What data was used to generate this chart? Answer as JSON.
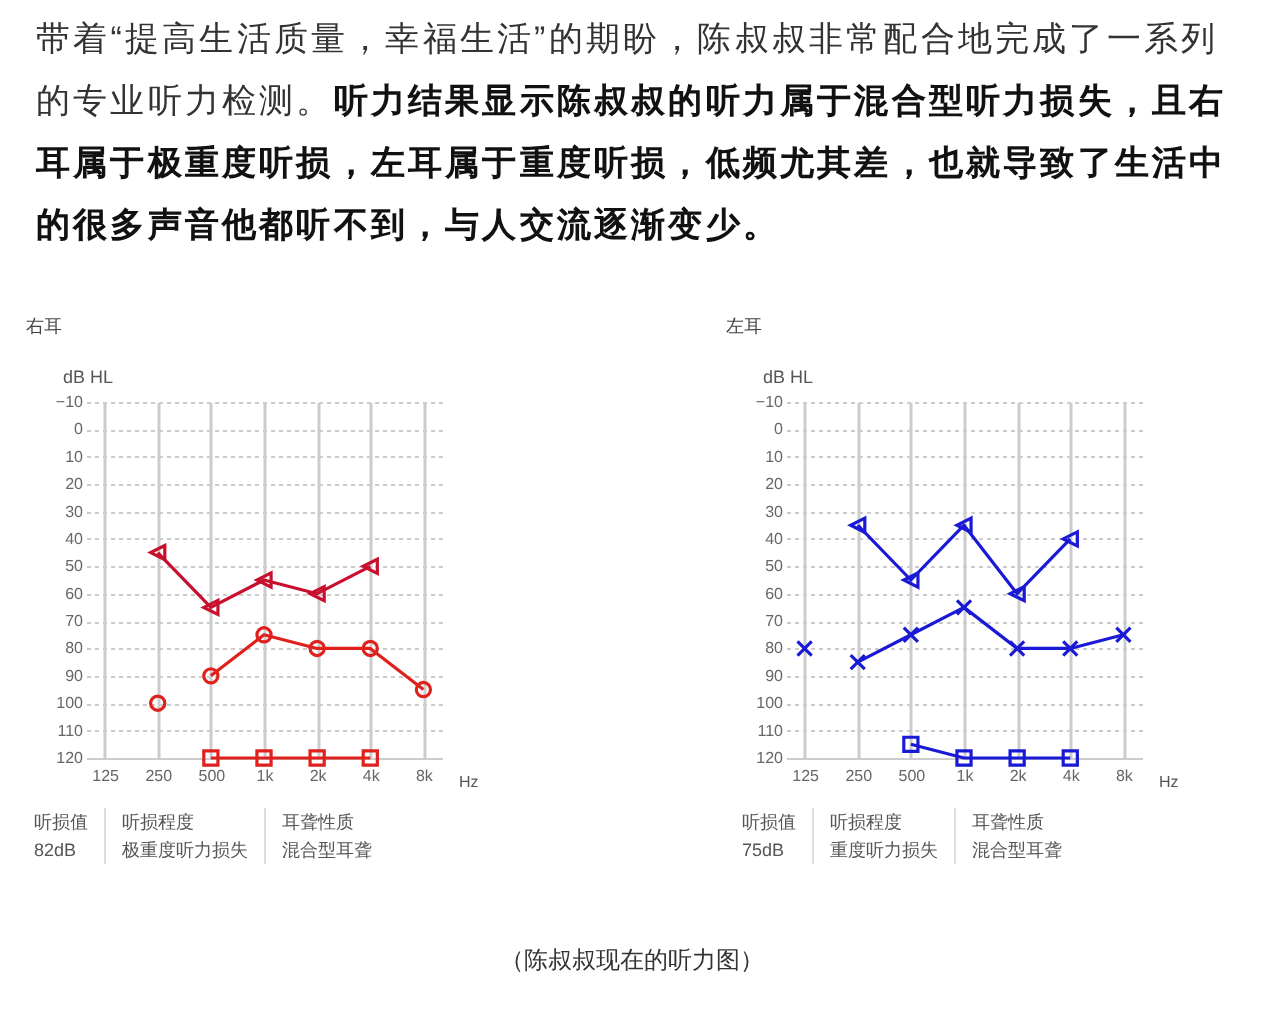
{
  "chart_data": [
    {
      "type": "line",
      "title": "右耳",
      "ylabel": "dB HL",
      "xlabel": "Hz",
      "categories": [
        "125",
        "250",
        "500",
        "1k",
        "2k",
        "4k",
        "8k"
      ],
      "ylim": [
        120,
        -10
      ],
      "yticks": [
        -10,
        0,
        10,
        20,
        30,
        40,
        50,
        60,
        70,
        80,
        90,
        100,
        110,
        120
      ],
      "grid": true,
      "series": [
        {
          "color": "#c8102e",
          "marker": "triangle",
          "values": [
            null,
            45,
            65,
            55,
            60,
            50,
            null
          ]
        },
        {
          "color": "#e0201c",
          "marker": "circle",
          "values": [
            null,
            null,
            90,
            75,
            80,
            80,
            95
          ]
        },
        {
          "type": "scatter",
          "color": "#e0201c",
          "marker": "circle",
          "values": [
            null,
            100,
            null,
            null,
            null,
            null,
            null
          ]
        },
        {
          "color": "#e0201c",
          "marker": "square",
          "values": [
            null,
            null,
            120,
            120,
            120,
            120,
            null
          ]
        }
      ],
      "annotations": [
        "听损值",
        "82dB",
        "听损程度",
        "极重度听力损失",
        "耳聋性质",
        "混合型耳聋",
        "带着“提高生活质量，幸福生活”的期盼，陈叔叔非常配合地完成了一系列的专业听力检测。",
        "听力结果显示陈叔叔的听力属于混合型听力损失，且右耳属于极重度听损，左耳属于重度听损，低频尤其差，也就导致了生活中的很多声音他都听不到，与人交流逐渐变少。"
      ]
    },
    {
      "type": "line",
      "title": "左耳",
      "ylabel": "dB HL",
      "xlabel": "Hz",
      "categories": [
        "125",
        "250",
        "500",
        "1k",
        "2k",
        "4k",
        "8k"
      ],
      "ylim": [
        120,
        -10
      ],
      "yticks": [
        -10,
        0,
        10,
        20,
        30,
        40,
        50,
        60,
        70,
        80,
        90,
        100,
        110,
        120
      ],
      "grid": true,
      "series": [
        {
          "color": "#1a1ad6",
          "marker": "triangle",
          "values": [
            null,
            35,
            55,
            35,
            60,
            40,
            null
          ]
        },
        {
          "color": "#1a1ad6",
          "marker": "cross",
          "values": [
            null,
            85,
            75,
            65,
            80,
            80,
            75
          ]
        },
        {
          "type": "scatter",
          "color": "#1a1ad6",
          "marker": "cross",
          "values": [
            80,
            null,
            null,
            null,
            null,
            null,
            null
          ]
        },
        {
          "color": "#1a1ad6",
          "marker": "square",
          "values": [
            null,
            null,
            115,
            120,
            120,
            120,
            null
          ]
        }
      ],
      "annotations": [
        "听损值",
        "75dB",
        "听损程度",
        "重度听力损失",
        "耳聋性质",
        "混合型耳聋",
        "（陈叔叔现在的听力图）"
      ]
    }
  ]
}
